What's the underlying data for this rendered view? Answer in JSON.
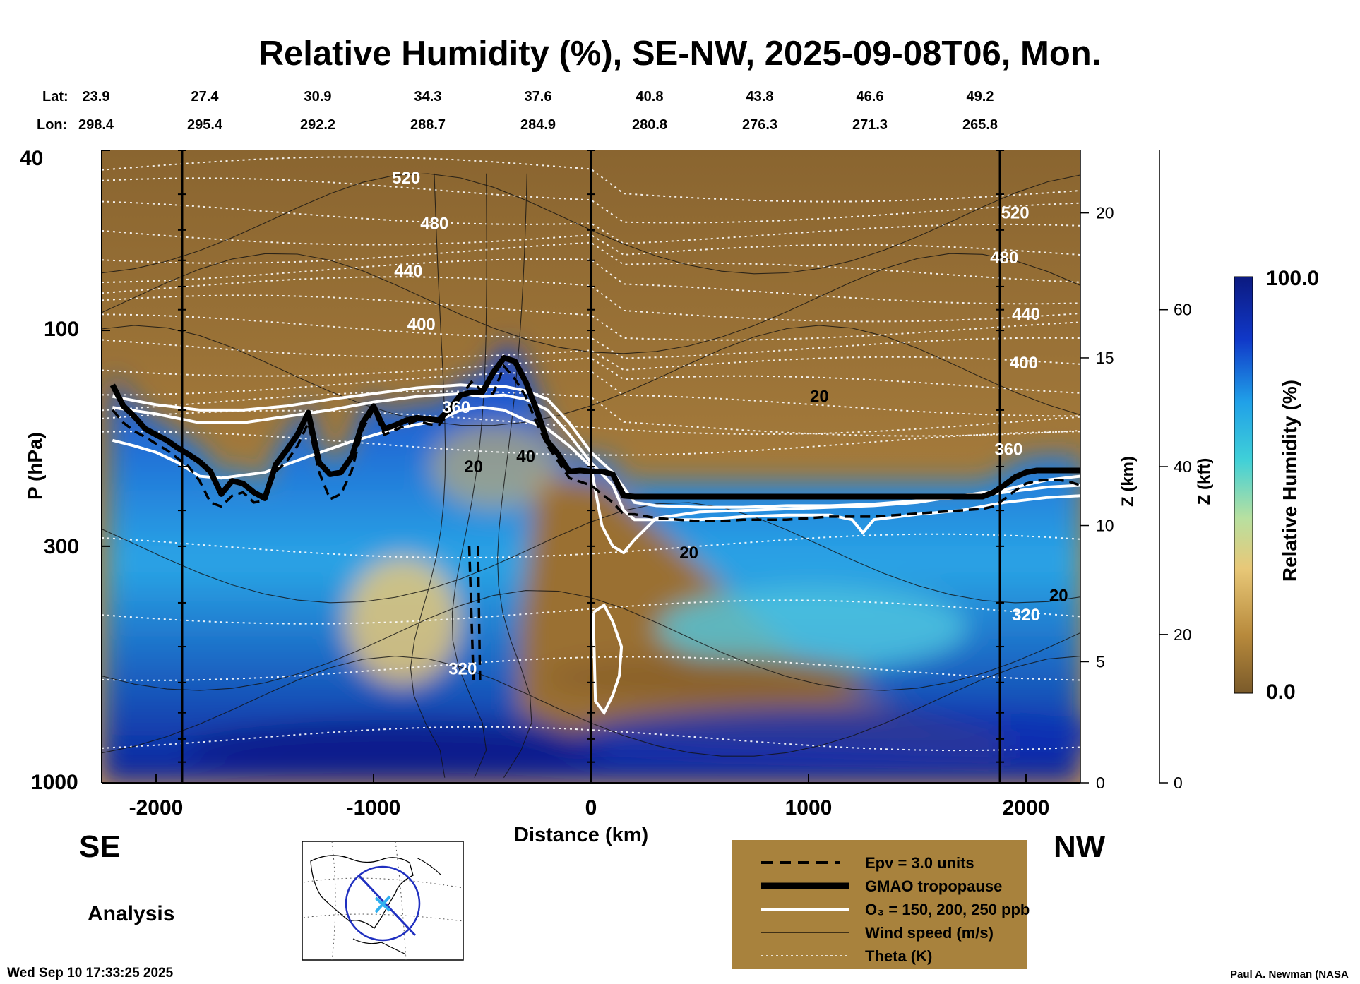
{
  "title": "Relative Humidity (%), SE-NW, 2025-09-08T06, Mon.",
  "lat_label": "Lat:",
  "lon_label": "Lon:",
  "lat": [
    "23.9",
    "27.4",
    "30.9",
    "34.3",
    "37.6",
    "40.8",
    "43.8",
    "46.6",
    "49.2"
  ],
  "lon": [
    "298.4",
    "295.4",
    "292.2",
    "288.7",
    "284.9",
    "280.8",
    "276.3",
    "271.3",
    "265.8"
  ],
  "direction_left": "SE",
  "direction_right": "NW",
  "analysis_label": "Analysis",
  "timestamp": "Wed Sep 10 17:33:25 2025",
  "credit": "Paul A. Newman (NASA",
  "legend": {
    "items": [
      {
        "label": "Epv = 3.0 units",
        "style": "dashed-black"
      },
      {
        "label": "GMAO tropopause",
        "style": "thick-black"
      },
      {
        "label": "O₃ = 150, 200, 250 ppb",
        "style": "white"
      },
      {
        "label": "Wind speed (m/s)",
        "style": "thin-black"
      },
      {
        "label": "Theta (K)",
        "style": "dotted-white"
      }
    ],
    "background": "#a8823d"
  },
  "colorbar": {
    "label": "Relative Humidity (%)",
    "max_label": "100.0",
    "min_label": "0.0",
    "colors_low_to_high": [
      "#7a5a2a",
      "#b88a3c",
      "#e8c878",
      "#b8e0a0",
      "#40d0d8",
      "#20a0e8",
      "#1038c8",
      "#0c1a80"
    ]
  },
  "chart_data": {
    "type": "heatmap",
    "title": "Relative Humidity (%), SE-NW, 2025-09-08T06, Mon.",
    "xlabel": "Distance (km)",
    "ylabel": "P (hPa)",
    "right_ylabel_1": "Z (km)",
    "right_ylabel_2": "Z (kft)",
    "xlim": [
      -2250,
      2250
    ],
    "ylim": [
      1000,
      40
    ],
    "y_log": true,
    "x_ticks": [
      -2000,
      -1000,
      0,
      1000,
      2000
    ],
    "x_tick_labels": [
      "-2000",
      "-1000",
      "0",
      "1000",
      "2000"
    ],
    "y_ticks": [
      40,
      100,
      300,
      1000
    ],
    "y_tick_labels": [
      "40",
      "100",
      "300",
      "1000"
    ],
    "z_km_ticks": [
      {
        "p": 1000,
        "label": "0"
      },
      {
        "p": 540,
        "label": "5"
      },
      {
        "p": 270,
        "label": "10"
      },
      {
        "p": 115,
        "label": "15"
      },
      {
        "p": 55,
        "label": "20"
      }
    ],
    "z_kft_ticks": [
      {
        "p": 1000,
        "label": "0"
      },
      {
        "p": 470,
        "label": "20"
      },
      {
        "p": 200,
        "label": "40"
      },
      {
        "p": 90,
        "label": "60"
      }
    ],
    "vertical_lines_km": [
      -1880,
      0,
      1880
    ],
    "theta_levels": [
      {
        "label": "520",
        "x": -850,
        "p": 46
      },
      {
        "label": "480",
        "x": -720,
        "p": 58
      },
      {
        "label": "440",
        "x": -840,
        "p": 74
      },
      {
        "label": "400",
        "x": -780,
        "p": 97
      },
      {
        "label": "360",
        "x": -620,
        "p": 148
      },
      {
        "label": "320",
        "x": -590,
        "p": 560
      },
      {
        "label": "520",
        "x": 1950,
        "p": 55
      },
      {
        "label": "480",
        "x": 1900,
        "p": 69
      },
      {
        "label": "440",
        "x": 2000,
        "p": 92
      },
      {
        "label": "400",
        "x": 1990,
        "p": 118
      },
      {
        "label": "360",
        "x": 1920,
        "p": 183
      },
      {
        "label": "320",
        "x": 2000,
        "p": 425
      }
    ],
    "wind_labels": [
      {
        "label": "20",
        "x": 1050,
        "p": 140
      },
      {
        "label": "20",
        "x": -540,
        "p": 200
      },
      {
        "label": "40",
        "x": -300,
        "p": 190
      },
      {
        "label": "20",
        "x": 450,
        "p": 310
      },
      {
        "label": "20",
        "x": 2150,
        "p": 385
      }
    ],
    "tropopause": {
      "x": [
        -2200,
        -2150,
        -2100,
        -2050,
        -2000,
        -1950,
        -1900,
        -1850,
        -1800,
        -1750,
        -1700,
        -1650,
        -1600,
        -1550,
        -1500,
        -1450,
        -1400,
        -1350,
        -1300,
        -1250,
        -1200,
        -1150,
        -1100,
        -1050,
        -1000,
        -950,
        -900,
        -850,
        -800,
        -750,
        -700,
        -650,
        -600,
        -550,
        -500,
        -450,
        -400,
        -350,
        -300,
        -250,
        -200,
        -150,
        -100,
        -50,
        0,
        50,
        100,
        150,
        200,
        300,
        400,
        500,
        600,
        700,
        800,
        900,
        1000,
        1100,
        1200,
        1300,
        1400,
        1500,
        1600,
        1700,
        1800,
        1850,
        1900,
        1950,
        2000,
        2050,
        2100,
        2150,
        2200,
        2250
      ],
      "p": [
        132,
        147,
        155,
        165,
        170,
        175,
        182,
        188,
        195,
        205,
        230,
        215,
        218,
        228,
        235,
        198,
        184,
        170,
        152,
        196,
        208,
        206,
        190,
        160,
        147,
        165,
        162,
        158,
        156,
        157,
        158,
        149,
        139,
        137,
        137,
        124,
        115,
        117,
        130,
        150,
        176,
        188,
        205,
        204,
        205,
        205,
        208,
        232,
        233,
        233,
        233,
        233,
        233,
        233,
        233,
        233,
        233,
        233,
        233,
        233,
        233,
        233,
        233,
        233,
        233,
        228,
        220,
        211,
        206,
        204,
        204,
        204,
        204,
        204
      ]
    },
    "epv_3units": {
      "x": [
        -2200,
        -2150,
        -2100,
        -2050,
        -2000,
        -1950,
        -1900,
        -1850,
        -1800,
        -1750,
        -1700,
        -1650,
        -1600,
        -1550,
        -1500,
        -1450,
        -1400,
        -1350,
        -1300,
        -1250,
        -1200,
        -1150,
        -1100,
        -1050,
        -1000,
        -950,
        -900,
        -850,
        -800,
        -750,
        -700,
        -650,
        -600,
        -550,
        -500,
        -450,
        -400,
        -350,
        -300,
        -250,
        -200,
        -150,
        -100,
        -50,
        0,
        50,
        100,
        150,
        200,
        300,
        400,
        500,
        600,
        700,
        800,
        900,
        1000,
        1100,
        1200,
        1300,
        1400,
        1500,
        1600,
        1700,
        1800,
        1850,
        1900,
        1950,
        2000,
        2050,
        2100,
        2150,
        2200,
        2250
      ],
      "p": [
        150,
        160,
        167,
        172,
        178,
        184,
        192,
        200,
        215,
        240,
        245,
        232,
        228,
        240,
        238,
        205,
        195,
        180,
        160,
        206,
        236,
        230,
        204,
        165,
        150,
        170,
        166,
        162,
        158,
        161,
        162,
        152,
        140,
        130,
        136,
        138,
        120,
        128,
        140,
        160,
        180,
        195,
        212,
        216,
        220,
        230,
        240,
        255,
        255,
        260,
        262,
        264,
        264,
        262,
        262,
        262,
        260,
        258,
        258,
        258,
        256,
        254,
        252,
        250,
        248,
        245,
        236,
        226,
        218,
        215,
        214,
        214,
        216,
        220
      ]
    },
    "ozone_contours": [
      {
        "x": [
          -2200,
          -2000,
          -1800,
          -1600,
          -1400,
          -1200,
          -1000,
          -800,
          -600,
          -500,
          -400,
          -300,
          -200,
          -100,
          0,
          100,
          150,
          200,
          300,
          500,
          700,
          900,
          1100,
          1200,
          1250,
          1300,
          1500,
          1700,
          1900,
          2100,
          2250
        ],
        "p": [
          148,
          153,
          160,
          160,
          155,
          150,
          144,
          140,
          138,
          140,
          139,
          142,
          150,
          170,
          196,
          220,
          250,
          262,
          262,
          262,
          258,
          256,
          256,
          262,
          280,
          262,
          255,
          250,
          240,
          234,
          232
        ]
      },
      {
        "x": [
          -2200,
          -2000,
          -1800,
          -1600,
          -1400,
          -1200,
          -1000,
          -800,
          -600,
          -500,
          -400,
          -300,
          -200,
          -100,
          0,
          100,
          200,
          300,
          500,
          700,
          900,
          1100,
          1300,
          1500,
          1700,
          1900,
          2100,
          2250
        ],
        "p": [
          140,
          146,
          150,
          150,
          147,
          142,
          138,
          134,
          132,
          133,
          133,
          136,
          142,
          160,
          186,
          206,
          240,
          244,
          246,
          246,
          244,
          244,
          242,
          238,
          234,
          228,
          222,
          220
        ]
      },
      {
        "x": [
          -2200,
          -2100,
          -2000,
          -1900,
          -1800,
          -1700,
          -1500,
          -1300,
          -1100,
          -900,
          -700,
          -600,
          -500,
          -400,
          -300,
          -200,
          -100,
          0,
          50,
          100,
          150,
          200,
          300,
          500,
          700,
          900,
          1100,
          1300,
          1500,
          1700,
          1900,
          2100,
          2250
        ],
        "p": [
          175,
          180,
          186,
          196,
          210,
          212,
          206,
          190,
          176,
          165,
          158,
          150,
          148,
          150,
          158,
          165,
          180,
          200,
          270,
          300,
          310,
          290,
          260,
          252,
          250,
          248,
          246,
          244,
          240,
          232,
          225,
          214,
          210
        ]
      }
    ],
    "ozone_pocket": {
      "x": [
        10,
        60,
        100,
        140,
        130,
        100,
        60,
        20,
        10
      ],
      "p": [
        420,
        405,
        440,
        500,
        580,
        640,
        700,
        660,
        420
      ]
    },
    "colorscale": {
      "min": 0.0,
      "max": 100.0
    }
  }
}
